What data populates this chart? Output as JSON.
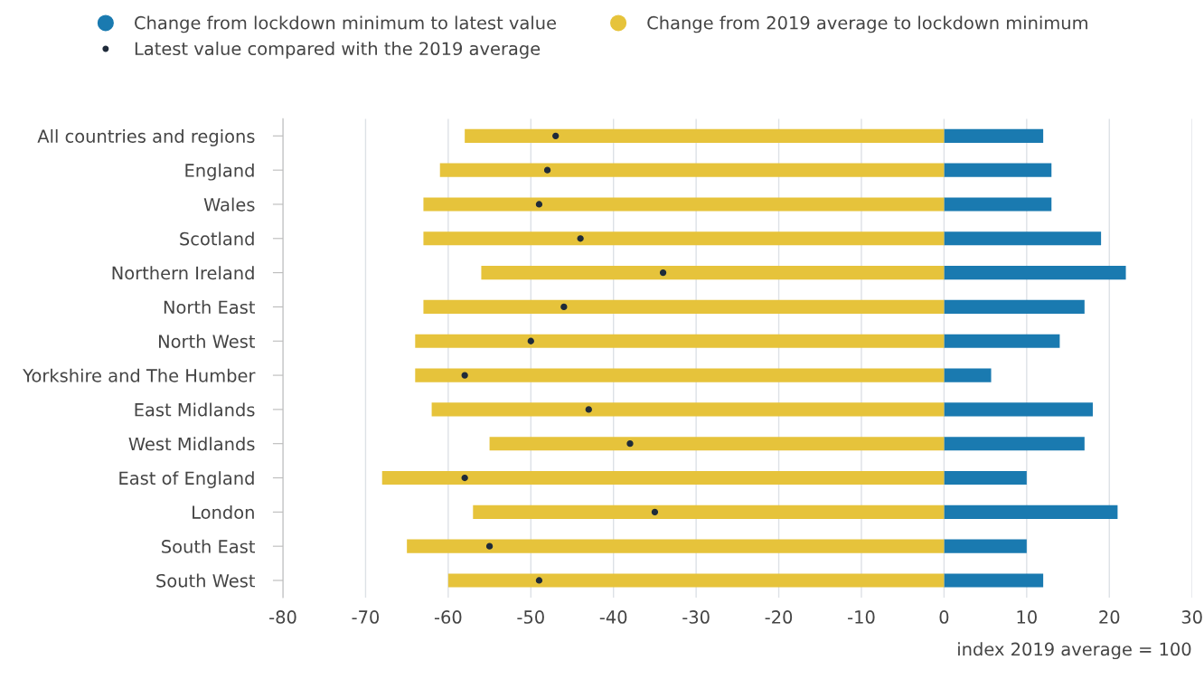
{
  "chart_data": {
    "type": "bar",
    "orientation": "horizontal",
    "stacked": true,
    "categories": [
      "All countries and regions",
      "England",
      "Wales",
      "Scotland",
      "Northern Ireland",
      "North East",
      "North West",
      "Yorkshire and The Humber",
      "East Midlands",
      "West Midlands",
      "East of England",
      "London",
      "South East",
      "South West"
    ],
    "series": [
      {
        "name": "Change from lockdown minimum to latest value",
        "color": "#1a7ab0",
        "values": [
          12,
          13,
          13,
          19,
          22,
          17,
          14,
          5.7,
          18,
          17,
          10,
          21,
          10,
          12
        ]
      },
      {
        "name": "Change from 2019 average to lockdown minimum",
        "color": "#e6c33b",
        "values": [
          -58,
          -61,
          -63,
          -63,
          -56,
          -63,
          -64,
          -64,
          -62,
          -55,
          -68,
          -57,
          -65,
          -60
        ]
      },
      {
        "name": "Latest value compared with the 2019 average",
        "type": "scatter",
        "color": "#1f2b3a",
        "marker": "circle",
        "values": [
          -47,
          -48,
          -49,
          -44,
          -34,
          -46,
          -50,
          -58,
          -43,
          -38,
          -58,
          -35,
          -55,
          -49
        ]
      }
    ],
    "xlim": [
      -80,
      30
    ],
    "xticks": [
      -80,
      -70,
      -60,
      -50,
      -40,
      -30,
      -20,
      -10,
      0,
      10,
      20,
      30
    ],
    "xlabel": "index 2019 average = 100",
    "grid": "x",
    "legend": "top"
  }
}
